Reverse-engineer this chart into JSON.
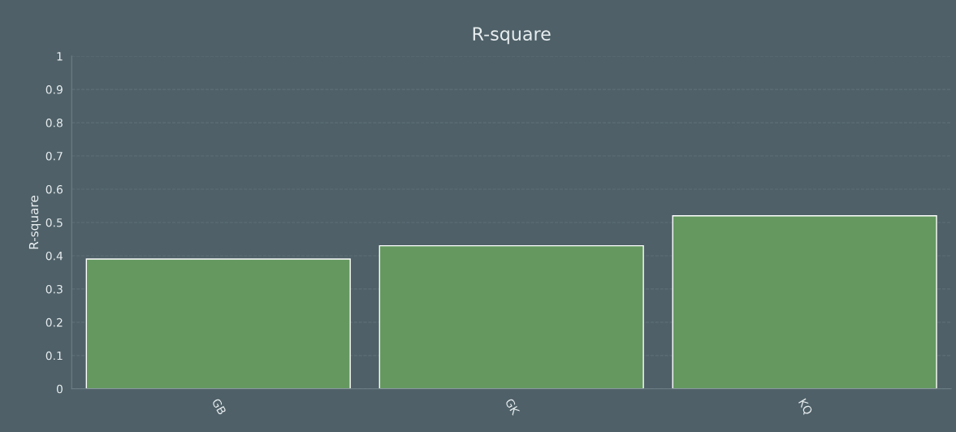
{
  "chart_data": {
    "type": "bar",
    "title": "R-square",
    "ylabel": "R-square",
    "categories": [
      "GB",
      "GK",
      "KQ"
    ],
    "values": [
      0.39,
      0.43,
      0.52
    ],
    "color": "#64985f",
    "ylim": [
      0,
      1
    ],
    "yticks": [
      0,
      0.1,
      0.2,
      0.3,
      0.4,
      0.5,
      0.6,
      0.7,
      0.8,
      0.9,
      1
    ],
    "grid": "y"
  }
}
